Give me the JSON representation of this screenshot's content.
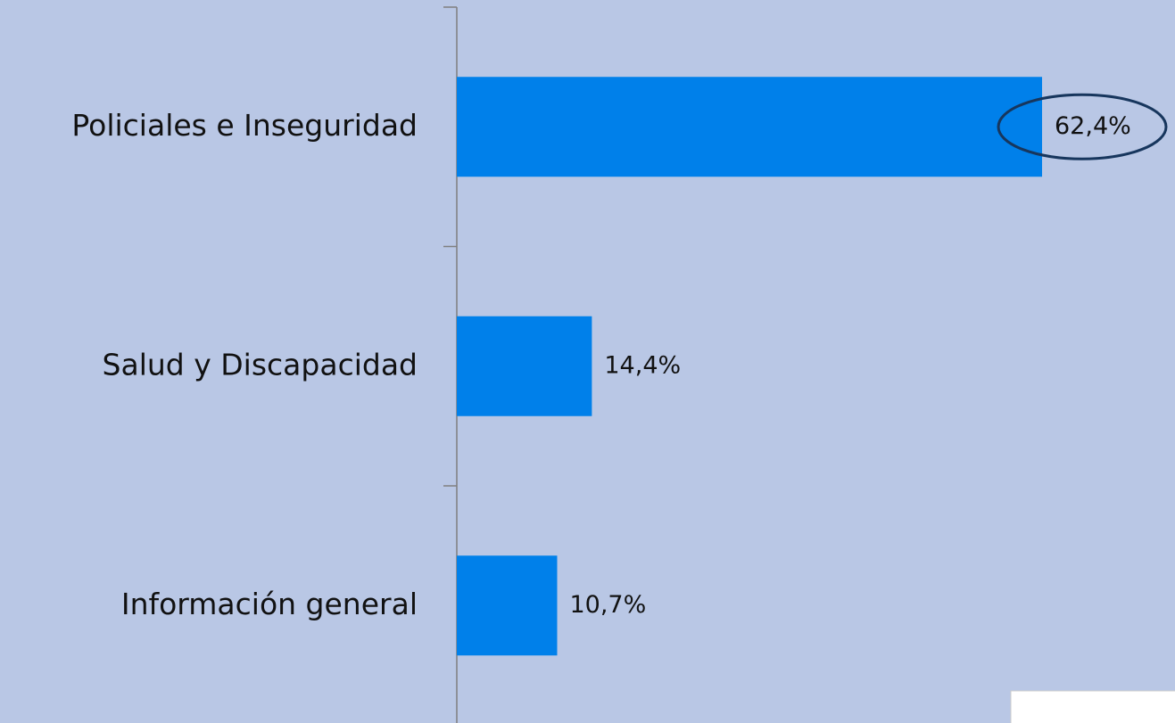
{
  "chart_data": {
    "type": "bar",
    "orientation": "horizontal",
    "categories": [
      "Policiales e Inseguridad",
      "Salud y Discapacidad",
      "Información general"
    ],
    "values": [
      62.4,
      14.4,
      10.7
    ],
    "value_labels": [
      "62,4%",
      "14,4%",
      "10,7%"
    ],
    "color": "#0080ea"
  }
}
